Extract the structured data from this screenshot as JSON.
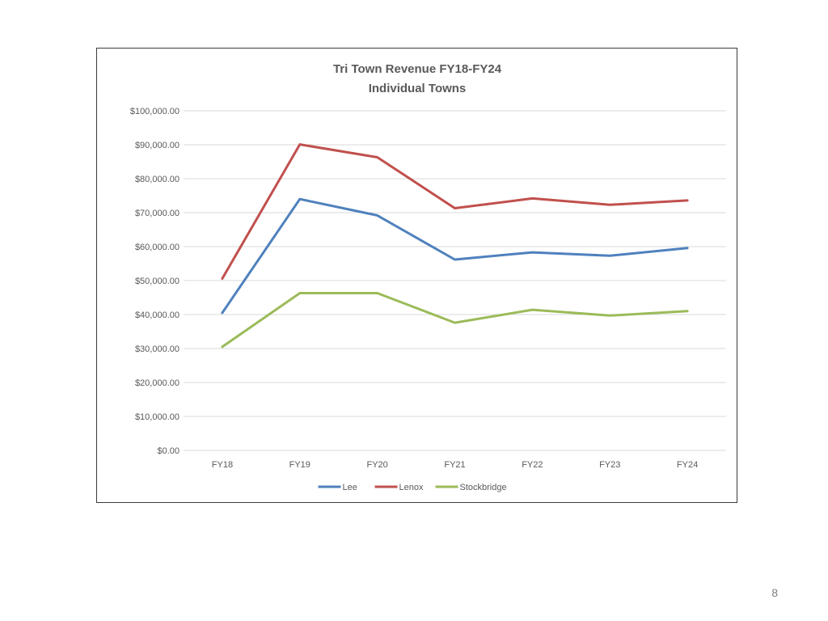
{
  "page": {
    "number": "8"
  },
  "chart_data": {
    "type": "line",
    "title": "Tri Town Revenue FY18-FY24",
    "subtitle": "Individual Towns",
    "xlabel": "",
    "ylabel": "",
    "categories": [
      "FY18",
      "FY19",
      "FY20",
      "FY21",
      "FY22",
      "FY23",
      "FY24"
    ],
    "ylim": [
      0,
      100000
    ],
    "yticks": [
      0,
      10000,
      20000,
      30000,
      40000,
      50000,
      60000,
      70000,
      80000,
      90000,
      100000
    ],
    "ytick_labels": [
      "$0.00",
      "$10,000.00",
      "$20,000.00",
      "$30,000.00",
      "$40,000.00",
      "$50,000.00",
      "$60,000.00",
      "$70,000.00",
      "$80,000.00",
      "$90,000.00",
      "$100,000.00"
    ],
    "grid": true,
    "legend_position": "bottom",
    "series": [
      {
        "name": "Lee",
        "color": "#4f81bd",
        "values": [
          40500,
          74000,
          69200,
          56200,
          58300,
          57300,
          59600
        ]
      },
      {
        "name": "Lenox",
        "color": "#c0504d",
        "values": [
          50600,
          90100,
          86300,
          71300,
          74200,
          72300,
          73600
        ]
      },
      {
        "name": "Stockbridge",
        "color": "#9bbb59",
        "values": [
          30500,
          46300,
          46300,
          37600,
          41400,
          39700,
          41000
        ]
      }
    ]
  }
}
